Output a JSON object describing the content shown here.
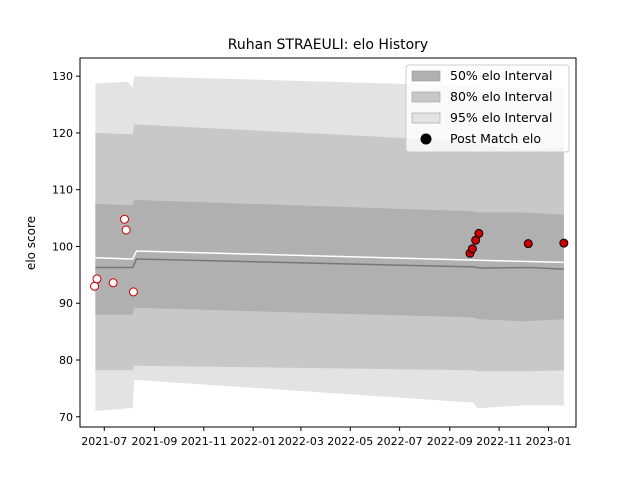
{
  "chart_data": {
    "type": "area",
    "title": "Ruhan STRAEULI: elo History",
    "xlabel": "",
    "ylabel": "elo score",
    "xlim": [
      "2021-06-01",
      "2023-02-04"
    ],
    "ylim": [
      68.2,
      133.2
    ],
    "x_ticks": [
      "2021-07",
      "2021-09",
      "2021-11",
      "2022-01",
      "2022-03",
      "2022-05",
      "2022-07",
      "2022-09",
      "2022-11",
      "2023-01"
    ],
    "y_ticks": [
      70,
      80,
      90,
      100,
      110,
      120,
      130
    ],
    "grid": false,
    "legend_position": "top-right",
    "legend": [
      {
        "label": "50% elo Interval",
        "color": "#b0b0b0"
      },
      {
        "label": "80% elo Interval",
        "color": "#c8c8c8"
      },
      {
        "label": "95% elo Interval",
        "color": "#e3e3e3"
      },
      {
        "label": "Post Match elo",
        "color": "#000000"
      }
    ],
    "band_x": [
      "2021-06-20",
      "2021-07-30",
      "2021-08-05",
      "2021-08-07",
      "2022-09-30",
      "2022-10-05",
      "2022-12-01",
      "2023-01-20"
    ],
    "bands": [
      {
        "name": "95% elo Interval",
        "color": "#e3e3e3",
        "upper": [
          128.7,
          129.0,
          128.0,
          130.0,
          128.3,
          128.0,
          128.0,
          128.0
        ],
        "lower": [
          71.0,
          71.5,
          71.5,
          76.5,
          72.5,
          71.5,
          72.0,
          72.0
        ]
      },
      {
        "name": "80% elo Interval",
        "color": "#c8c8c8",
        "upper": [
          120.0,
          119.8,
          119.8,
          121.5,
          118.5,
          118.0,
          117.0,
          117.5
        ],
        "lower": [
          78.2,
          78.2,
          78.2,
          79.0,
          78.2,
          78.0,
          78.0,
          78.2
        ]
      },
      {
        "name": "50% elo Interval",
        "color": "#b0b0b0",
        "upper": [
          107.5,
          107.3,
          107.3,
          108.2,
          106.2,
          106.0,
          106.0,
          105.6
        ],
        "lower": [
          88.0,
          88.0,
          88.0,
          89.2,
          87.5,
          87.2,
          86.8,
          87.2
        ]
      }
    ],
    "mean_line": {
      "color": "#777777",
      "x": [
        "2021-06-20",
        "2021-08-05",
        "2021-08-10",
        "2022-09-30",
        "2022-10-10",
        "2022-12-10",
        "2023-01-20"
      ],
      "values": [
        96.3,
        96.3,
        97.8,
        96.4,
        96.2,
        96.3,
        96.0
      ]
    },
    "upper_line": {
      "color": "#ffffff",
      "x": [
        "2021-06-20",
        "2021-08-05",
        "2021-08-10",
        "2022-09-30",
        "2023-01-20"
      ],
      "values": [
        98.0,
        97.8,
        99.2,
        97.6,
        97.2
      ]
    },
    "pre_points": {
      "face": "#ffffff",
      "edge": "#cc0000",
      "x": [
        "2021-06-19",
        "2021-06-22",
        "2021-07-12",
        "2021-07-26",
        "2021-07-28",
        "2021-08-06"
      ],
      "values": [
        93.0,
        94.3,
        93.6,
        104.8,
        102.9,
        92.0
      ]
    },
    "post_points": {
      "name": "Post Match elo",
      "face": "#cc0000",
      "edge": "#000000",
      "x": [
        "2022-09-26",
        "2022-09-29",
        "2022-10-03",
        "2022-10-07",
        "2022-12-07",
        "2023-01-20"
      ],
      "values": [
        98.8,
        99.6,
        101.1,
        102.3,
        100.5,
        100.6
      ]
    }
  }
}
